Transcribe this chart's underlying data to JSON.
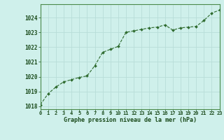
{
  "x": [
    0,
    1,
    2,
    3,
    4,
    5,
    6,
    7,
    8,
    9,
    10,
    11,
    12,
    13,
    14,
    15,
    16,
    17,
    18,
    19,
    20,
    21,
    22,
    23
  ],
  "y": [
    1018.1,
    1018.85,
    1019.3,
    1019.65,
    1019.8,
    1019.95,
    1020.05,
    1020.75,
    1021.65,
    1021.85,
    1022.05,
    1023.0,
    1023.1,
    1023.2,
    1023.3,
    1023.35,
    1023.5,
    1023.15,
    1023.3,
    1023.35,
    1023.4,
    1023.8,
    1024.3,
    1024.5
  ],
  "line_color": "#2d6a2d",
  "marker_color": "#2d6a2d",
  "bg_color": "#cff0eb",
  "grid_color": "#b8ddd8",
  "xlabel": "Graphe pression niveau de la mer (hPa)",
  "xlabel_color": "#1a4a1a",
  "ylabel_ticks": [
    1018,
    1019,
    1020,
    1021,
    1022,
    1023,
    1024
  ],
  "xlim": [
    0,
    23
  ],
  "ylim": [
    1017.8,
    1024.9
  ],
  "tick_label_color": "#1a4a1a",
  "spine_color": "#4a8a4a"
}
